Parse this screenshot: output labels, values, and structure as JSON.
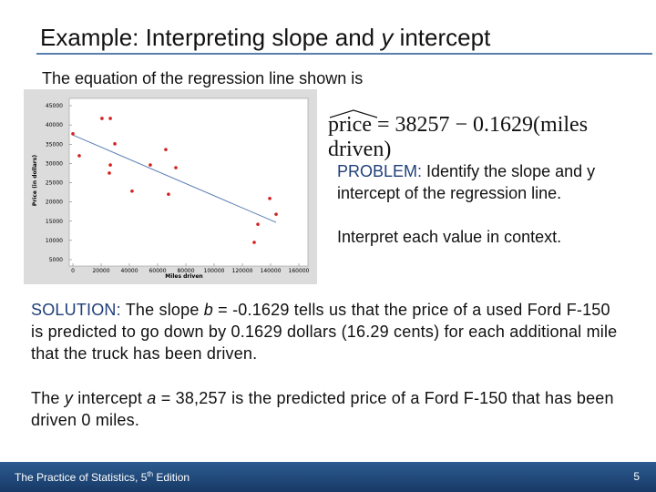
{
  "header": {
    "title": [
      "Example: Interpreting slope and ",
      "y",
      " intercept"
    ]
  },
  "intro": "The equation of the regression line shown is",
  "equation": {
    "lhs": "price",
    "rhs": "= 38257 − 0.1629(miles driven)"
  },
  "problem": {
    "label": "PROBLEM:",
    "text": " Identify the slope and y intercept of the regression line."
  },
  "interpret": "Interpret each value in context.",
  "solution": {
    "label": "SOLUTION:",
    "parts": [
      " The slope ",
      "b",
      " =  -0.1629 tells us that the price of a used Ford F-150 is predicted to go down by 0.1629 dollars (16.29 cents) for each additional mile that the truck has been driven."
    ]
  },
  "intercept": {
    "parts": [
      "The ",
      "y",
      " intercept ",
      "a",
      " = 38,257 is the predicted price of a Ford F-150 that has been driven 0 miles."
    ]
  },
  "footer": {
    "book": "The Practice of Statistics, 5",
    "sup": "th",
    "edition": " Edition",
    "page": "5"
  },
  "chart_data": {
    "type": "scatter",
    "x_label": "Miles driven",
    "y_label": "Price (in dollars)",
    "color": "#d62020",
    "line_color": "#5b7fb5",
    "x": [
      0,
      4500,
      20600,
      26500,
      29700,
      26500,
      25800,
      41900,
      54800,
      65800,
      67700,
      72900,
      128400,
      131000,
      139400,
      143900
    ],
    "y": [
      37700,
      32000,
      41700,
      41700,
      35100,
      29600,
      27500,
      22800,
      29600,
      33600,
      22000,
      28900,
      9500,
      14200,
      20900,
      16800
    ],
    "xlim": [
      0,
      160000
    ],
    "ylim": [
      5000,
      45000
    ],
    "xticks": [
      0,
      20000,
      40000,
      60000,
      80000,
      100000,
      120000,
      140000,
      160000
    ],
    "yticks": [
      5000,
      10000,
      15000,
      20000,
      25000,
      30000,
      35000,
      40000,
      45000
    ]
  }
}
